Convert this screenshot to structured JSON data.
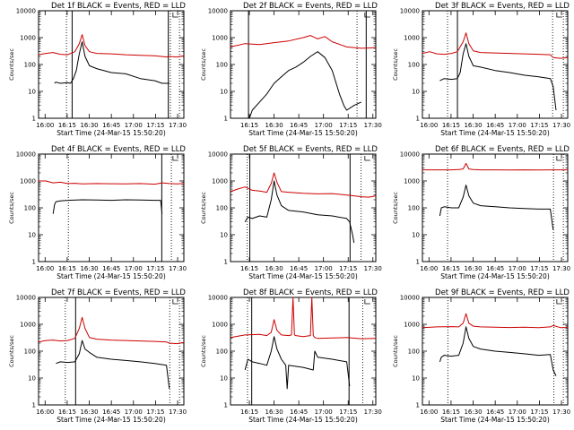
{
  "chart_data": [
    {
      "type": "line",
      "title": "Det 1f BLACK = Events, RED = LLD",
      "xlabel": "Start Time (24-Mar-15 15:50:20)",
      "ylabel": "Counts/sec",
      "x_ticks": [
        "16:00",
        "16:15",
        "16:30",
        "16:45",
        "17:00",
        "17:15",
        "17:30"
      ],
      "y_ticks": [
        "1",
        "10",
        "100",
        "1000",
        "10000"
      ],
      "xlim": [
        0,
        100
      ],
      "ylim": [
        1,
        10000
      ],
      "dotted_markers": [
        19.2,
        90.7,
        97.0
      ],
      "solid_markers": [
        23.1,
        89.3
      ],
      "series": [
        {
          "name": "RED = LLD",
          "color": "#cc0000",
          "x": [
            0,
            5,
            10,
            15,
            20,
            25,
            28,
            30,
            32,
            35,
            40,
            50,
            60,
            70,
            80,
            88,
            90,
            95,
            100
          ],
          "y": [
            230,
            260,
            280,
            240,
            230,
            300,
            600,
            1300,
            500,
            300,
            260,
            250,
            230,
            220,
            210,
            190,
            200,
            190,
            210
          ]
        },
        {
          "name": "BLACK = Events",
          "color": "#000000",
          "x": [
            11,
            12,
            15,
            20,
            22,
            24,
            26,
            28,
            30,
            32,
            35,
            40,
            50,
            60,
            70,
            80,
            85,
            90
          ],
          "y": [
            20,
            22,
            20,
            21,
            20,
            30,
            60,
            250,
            700,
            200,
            90,
            70,
            50,
            45,
            30,
            25,
            20,
            20
          ]
        }
      ]
    },
    {
      "type": "line",
      "title": "Det 2f BLACK = Events, RED = LLD",
      "xlabel": "Start Time (24-Mar-15 15:50:20)",
      "ylabel": "Counts/sec",
      "x_ticks": [
        "16:15",
        "16:30",
        "16:45",
        "17:00",
        "17:15",
        "17:30"
      ],
      "y_ticks": [
        "1",
        "10",
        "100",
        "1000",
        "10000"
      ],
      "xlim": [
        0,
        100
      ],
      "ylim": [
        1,
        10000
      ],
      "dotted_markers": [
        87.1
      ],
      "solid_markers": [
        12.4,
        93.4
      ],
      "series": [
        {
          "name": "RED = LLD",
          "color": "#cc0000",
          "x": [
            0,
            10,
            20,
            30,
            40,
            50,
            55,
            60,
            65,
            70,
            80,
            90,
            100
          ],
          "y": [
            450,
            600,
            550,
            650,
            750,
            1000,
            1200,
            900,
            1100,
            700,
            450,
            400,
            420
          ]
        },
        {
          "name": "BLACK = Events",
          "color": "#000000",
          "x": [
            13,
            15,
            20,
            25,
            30,
            35,
            40,
            45,
            50,
            55,
            60,
            65,
            70,
            75,
            78,
            80,
            85,
            90
          ],
          "y": [
            1,
            2,
            4,
            8,
            20,
            35,
            60,
            80,
            120,
            200,
            300,
            180,
            60,
            8,
            3,
            2,
            3,
            4
          ]
        }
      ]
    },
    {
      "type": "line",
      "title": "Det 3f BLACK = Events, RED = LLD",
      "xlabel": "Start Time (24-Mar-15 15:50:20)",
      "ylabel": "Counts/sec",
      "x_ticks": [
        "16:00",
        "16:15",
        "16:30",
        "16:45",
        "17:00",
        "17:15",
        "17:30"
      ],
      "y_ticks": [
        "1",
        "10",
        "100",
        "1000",
        "10000"
      ],
      "xlim": [
        0,
        100
      ],
      "ylim": [
        1,
        10000
      ],
      "dotted_markers": [
        17.3,
        89.6,
        97.0
      ],
      "solid_markers": [
        24.1
      ],
      "series": [
        {
          "name": "RED = LLD",
          "color": "#cc0000",
          "x": [
            0,
            5,
            10,
            15,
            20,
            24,
            28,
            30,
            32,
            35,
            40,
            50,
            60,
            70,
            80,
            88,
            90,
            95,
            100
          ],
          "y": [
            260,
            300,
            250,
            240,
            260,
            300,
            700,
            1500,
            600,
            320,
            280,
            270,
            260,
            250,
            240,
            230,
            180,
            170,
            180
          ]
        },
        {
          "name": "BLACK = Events",
          "color": "#000000",
          "x": [
            12,
            15,
            20,
            24,
            26,
            28,
            30,
            32,
            35,
            40,
            50,
            60,
            70,
            80,
            88,
            90,
            92
          ],
          "y": [
            25,
            30,
            28,
            30,
            50,
            250,
            600,
            200,
            90,
            80,
            60,
            50,
            40,
            35,
            30,
            15,
            2
          ]
        }
      ]
    },
    {
      "type": "line",
      "title": "Det 4f BLACK = Events, RED = LLD",
      "xlabel": "Start Time (24-Mar-15 15:50:20)",
      "ylabel": "Counts/sec",
      "x_ticks": [
        "16:00",
        "16:15",
        "16:30",
        "16:45",
        "17:00",
        "17:15",
        "17:30"
      ],
      "y_ticks": [
        "1",
        "10",
        "100",
        "1000",
        "10000"
      ],
      "xlim": [
        0,
        100
      ],
      "ylim": [
        1,
        10000
      ],
      "dotted_markers": [
        20.5,
        91.4
      ],
      "solid_markers": [
        84.8
      ],
      "series": [
        {
          "name": "RED = LLD",
          "color": "#cc0000",
          "x": [
            0,
            5,
            10,
            15,
            20,
            25,
            30,
            40,
            50,
            60,
            70,
            80,
            85,
            90,
            95,
            100
          ],
          "y": [
            1000,
            1000,
            850,
            900,
            800,
            820,
            780,
            800,
            790,
            780,
            800,
            760,
            850,
            800,
            780,
            800
          ]
        },
        {
          "name": "BLACK = Events",
          "color": "#000000",
          "x": [
            10,
            11,
            12,
            15,
            20,
            30,
            40,
            50,
            60,
            70,
            80,
            84,
            85
          ],
          "y": [
            60,
            130,
            170,
            180,
            190,
            200,
            195,
            190,
            200,
            195,
            190,
            190,
            60
          ]
        }
      ]
    },
    {
      "type": "line",
      "title": "Det 5f BLACK = Events, RED = LLD",
      "xlabel": "Start Time (24-Mar-15 15:50:20)",
      "ylabel": "Counts/sec",
      "x_ticks": [
        "16:15",
        "16:30",
        "16:45",
        "17:00",
        "17:15",
        "17:30"
      ],
      "y_ticks": [
        "1",
        "10",
        "100",
        "1000",
        "10000"
      ],
      "xlim": [
        0,
        100
      ],
      "ylim": [
        1,
        10000
      ],
      "dotted_markers": [
        11.5,
        89.9
      ],
      "solid_markers": [
        13.3,
        82.3
      ],
      "series": [
        {
          "name": "RED = LLD",
          "color": "#cc0000",
          "x": [
            0,
            5,
            10,
            15,
            20,
            25,
            28,
            30,
            32,
            35,
            40,
            50,
            60,
            70,
            80,
            85,
            90,
            95,
            100
          ],
          "y": [
            400,
            500,
            600,
            450,
            420,
            380,
            800,
            2000,
            900,
            400,
            380,
            350,
            330,
            340,
            300,
            280,
            260,
            250,
            280
          ]
        },
        {
          "name": "BLACK = Events",
          "color": "#000000",
          "x": [
            10,
            12,
            15,
            20,
            25,
            28,
            30,
            32,
            35,
            40,
            50,
            60,
            70,
            80,
            82,
            84,
            85
          ],
          "y": [
            30,
            45,
            40,
            50,
            45,
            200,
            1000,
            300,
            120,
            80,
            70,
            55,
            50,
            40,
            30,
            10,
            5
          ]
        }
      ]
    },
    {
      "type": "line",
      "title": "Det 6f BLACK = Events, RED = LLD",
      "xlabel": "Start Time (24-Mar-15 15:50:20)",
      "ylabel": "Counts/sec",
      "x_ticks": [
        "16:00",
        "16:15",
        "16:30",
        "16:45",
        "17:00",
        "17:15",
        "17:30"
      ],
      "y_ticks": [
        "1",
        "10",
        "100",
        "1000",
        "10000"
      ],
      "xlim": [
        0,
        100
      ],
      "ylim": [
        1,
        10000
      ],
      "dotted_markers": [
        17.3,
        90.2,
        97.0
      ],
      "solid_markers": [],
      "series": [
        {
          "name": "RED = LLD",
          "color": "#cc0000",
          "x": [
            0,
            10,
            20,
            25,
            28,
            30,
            32,
            35,
            40,
            50,
            60,
            70,
            80,
            90,
            100
          ],
          "y": [
            2600,
            2600,
            2600,
            2650,
            2800,
            4500,
            2800,
            2650,
            2600,
            2600,
            2550,
            2600,
            2550,
            2600,
            2600
          ]
        },
        {
          "name": "BLACK = Events",
          "color": "#000000",
          "x": [
            12,
            13,
            15,
            20,
            25,
            28,
            30,
            32,
            35,
            40,
            50,
            60,
            70,
            80,
            88,
            90
          ],
          "y": [
            50,
            100,
            110,
            100,
            100,
            250,
            700,
            280,
            150,
            120,
            110,
            100,
            95,
            90,
            90,
            15
          ]
        }
      ]
    },
    {
      "type": "line",
      "title": "Det 7f BLACK = Events, RED = LLD",
      "xlabel": "Start Time (24-Mar-15 15:50:20)",
      "ylabel": "Counts/sec",
      "x_ticks": [
        "16:00",
        "16:15",
        "16:30",
        "16:45",
        "17:00",
        "17:15",
        "17:30"
      ],
      "y_ticks": [
        "1",
        "10",
        "100",
        "1000",
        "10000"
      ],
      "xlim": [
        0,
        100
      ],
      "ylim": [
        1,
        10000
      ],
      "dotted_markers": [
        18.4,
        90.3,
        97.0
      ],
      "solid_markers": [
        25.5
      ],
      "series": [
        {
          "name": "RED = LLD",
          "color": "#cc0000",
          "x": [
            0,
            5,
            10,
            15,
            20,
            25,
            28,
            30,
            32,
            35,
            40,
            50,
            60,
            70,
            80,
            88,
            90,
            95,
            100
          ],
          "y": [
            220,
            250,
            260,
            240,
            250,
            300,
            700,
            1800,
            700,
            320,
            280,
            260,
            250,
            240,
            230,
            220,
            200,
            190,
            210
          ]
        },
        {
          "name": "BLACK = Events",
          "color": "#000000",
          "x": [
            12,
            15,
            20,
            25,
            28,
            30,
            32,
            35,
            40,
            50,
            60,
            70,
            80,
            88,
            90
          ],
          "y": [
            35,
            40,
            38,
            40,
            80,
            250,
            120,
            90,
            60,
            50,
            45,
            40,
            35,
            30,
            4
          ]
        }
      ]
    },
    {
      "type": "line",
      "title": "Det 8f BLACK = Events, RED = LLD",
      "xlabel": "Start Time (24-Mar-15 15:50:20)",
      "ylabel": "Counts/sec",
      "x_ticks": [
        "16:15",
        "16:30",
        "16:45",
        "17:00",
        "17:15",
        "17:30"
      ],
      "y_ticks": [
        "1",
        "10",
        "100",
        "1000",
        "10000"
      ],
      "xlim": [
        0,
        100
      ],
      "ylim": [
        1,
        10000
      ],
      "dotted_markers": [
        11.7,
        91.0
      ],
      "solid_markers": [
        14.6,
        81.6
      ],
      "series": [
        {
          "name": "RED = LLD",
          "color": "#cc0000",
          "x": [
            0,
            10,
            20,
            25,
            28,
            30,
            32,
            35,
            40,
            42,
            43,
            44,
            45,
            50,
            55,
            56,
            57,
            58,
            60,
            70,
            80,
            90,
            100
          ],
          "y": [
            320,
            400,
            420,
            380,
            500,
            1500,
            600,
            400,
            380,
            400,
            10000,
            400,
            380,
            350,
            380,
            10000,
            380,
            320,
            300,
            310,
            320,
            290,
            300
          ]
        },
        {
          "name": "BLACK = Events",
          "color": "#000000",
          "x": [
            10,
            12,
            15,
            20,
            25,
            28,
            30,
            32,
            35,
            38,
            39,
            40,
            50,
            57,
            58,
            60,
            70,
            80,
            82
          ],
          "y": [
            20,
            50,
            40,
            35,
            30,
            100,
            350,
            120,
            50,
            30,
            4,
            30,
            25,
            20,
            100,
            60,
            50,
            40,
            5
          ]
        }
      ]
    },
    {
      "type": "line",
      "title": "Det 9f BLACK = Events, RED = LLD",
      "xlabel": "Start Time (24-Mar-15 15:50:20)",
      "ylabel": "Counts/sec",
      "x_ticks": [
        "16:00",
        "16:15",
        "16:30",
        "16:45",
        "17:00",
        "17:15",
        "17:30"
      ],
      "y_ticks": [
        "1",
        "10",
        "100",
        "1000",
        "10000"
      ],
      "xlim": [
        0,
        100
      ],
      "ylim": [
        1,
        10000
      ],
      "dotted_markers": [
        17.5,
        90.5,
        97.0
      ],
      "solid_markers": [],
      "series": [
        {
          "name": "RED = LLD",
          "color": "#cc0000",
          "x": [
            0,
            10,
            20,
            25,
            28,
            30,
            32,
            35,
            40,
            50,
            60,
            70,
            80,
            88,
            90,
            95,
            100
          ],
          "y": [
            750,
            800,
            820,
            800,
            1100,
            2500,
            1100,
            850,
            800,
            780,
            760,
            780,
            750,
            800,
            900,
            750,
            760
          ]
        },
        {
          "name": "BLACK = Events",
          "color": "#000000",
          "x": [
            12,
            13,
            15,
            20,
            25,
            28,
            30,
            32,
            35,
            40,
            50,
            60,
            70,
            80,
            88,
            90,
            92
          ],
          "y": [
            40,
            60,
            70,
            65,
            70,
            200,
            800,
            300,
            150,
            120,
            100,
            90,
            80,
            70,
            75,
            20,
            12
          ]
        }
      ]
    }
  ]
}
